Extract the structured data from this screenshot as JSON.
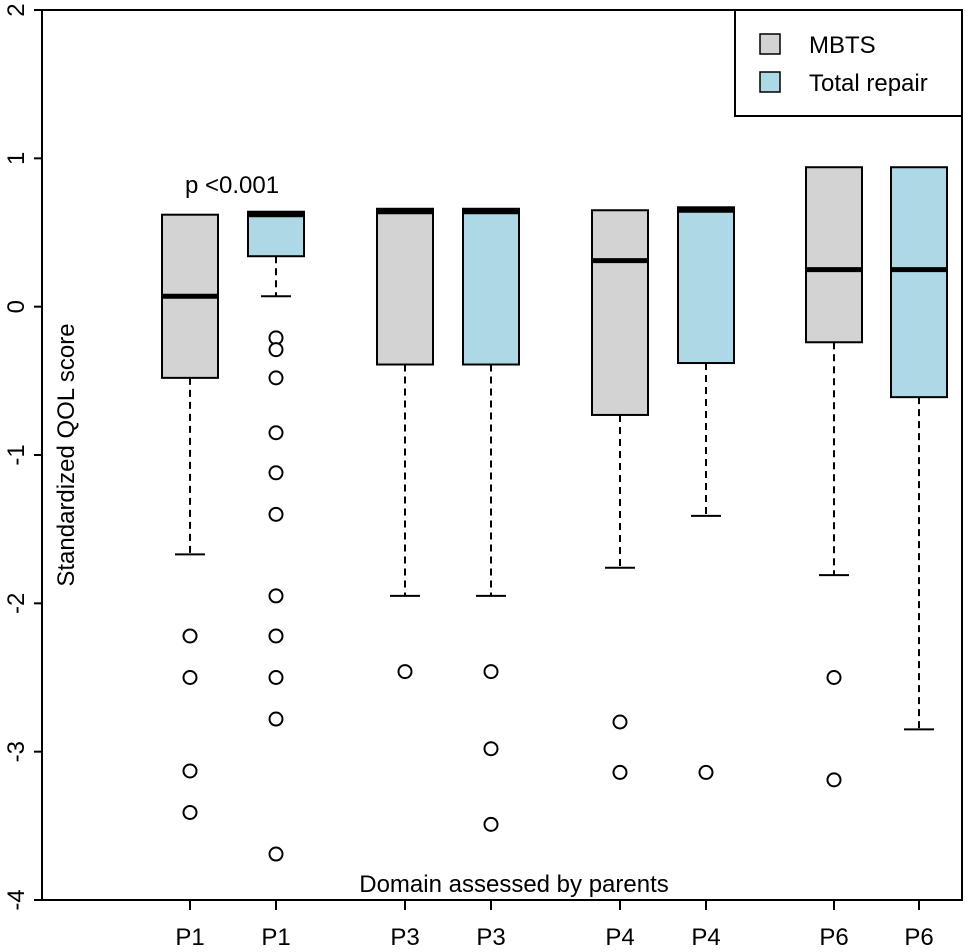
{
  "chart_data": {
    "type": "boxplot",
    "title": "",
    "xlabel": "Domain assessed by parents",
    "ylabel": "Standardized QOL score",
    "ylim": [
      -4,
      2
    ],
    "yticks": [
      "-4",
      "-3",
      "-2",
      "-1",
      "0",
      "1",
      "2"
    ],
    "legend": {
      "position": "top-right",
      "entries": [
        {
          "label": "MBTS",
          "color": "#d3d3d3"
        },
        {
          "label": "Total repair",
          "color": "#add8e6"
        }
      ]
    },
    "annotation": {
      "text": "p <0.001",
      "color": "#3a4fa6",
      "box_index": 1
    },
    "boxes": [
      {
        "label": "P1",
        "group": "MBTS",
        "whisker_low": -1.67,
        "q1": -0.48,
        "median": 0.07,
        "q3": 0.62,
        "whisker_high": 0.62,
        "outliers": [
          -2.22,
          -2.5,
          -3.13,
          -3.41
        ]
      },
      {
        "label": "P1",
        "group": "Total repair",
        "whisker_low": 0.07,
        "q1": 0.34,
        "median": 0.62,
        "q3": 0.64,
        "whisker_high": 0.64,
        "outliers": [
          -0.21,
          -0.29,
          -0.48,
          -0.85,
          -1.12,
          -1.4,
          -1.95,
          -2.22,
          -2.5,
          -2.78,
          -3.69
        ]
      },
      {
        "label": "P3",
        "group": "MBTS",
        "whisker_low": -1.95,
        "q1": -0.39,
        "median": 0.64,
        "q3": 0.66,
        "whisker_high": 0.66,
        "outliers": [
          -2.46
        ]
      },
      {
        "label": "P3",
        "group": "Total repair",
        "whisker_low": -1.95,
        "q1": -0.39,
        "median": 0.64,
        "q3": 0.66,
        "whisker_high": 0.66,
        "outliers": [
          -2.46,
          -2.98,
          -3.49
        ]
      },
      {
        "label": "P4",
        "group": "MBTS",
        "whisker_low": -1.76,
        "q1": -0.73,
        "median": 0.31,
        "q3": 0.65,
        "whisker_high": 0.65,
        "outliers": [
          -2.8,
          -3.14
        ]
      },
      {
        "label": "P4",
        "group": "Total repair",
        "whisker_low": -1.41,
        "q1": -0.38,
        "median": 0.65,
        "q3": 0.67,
        "whisker_high": 0.67,
        "outliers": [
          -3.14
        ]
      },
      {
        "label": "P6",
        "group": "MBTS",
        "whisker_low": -1.81,
        "q1": -0.24,
        "median": 0.25,
        "q3": 0.94,
        "whisker_high": 0.94,
        "outliers": [
          -2.5,
          -3.19
        ]
      },
      {
        "label": "P6",
        "group": "Total repair",
        "whisker_low": -2.85,
        "q1": -0.61,
        "median": 0.25,
        "q3": 0.94,
        "whisker_high": 0.94,
        "outliers": []
      }
    ]
  }
}
